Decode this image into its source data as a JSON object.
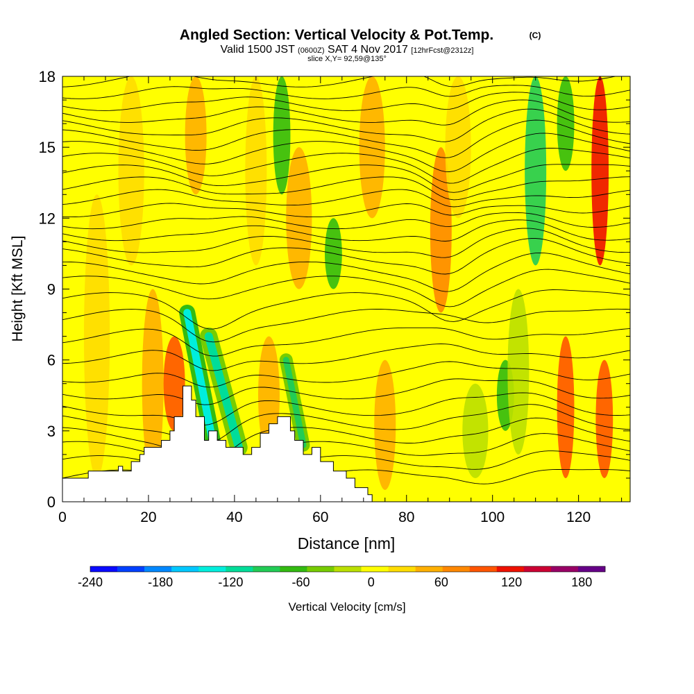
{
  "chart_data": {
    "type": "heatmap",
    "title": "Angled Section: Vertical Velocity & Pot.Temp.",
    "title_suffix": "(C)",
    "subtitle_parts": [
      "Valid 1500 JST",
      "(0600Z)",
      "SAT 4 Nov 2017",
      "[12hrFcst@2312z]"
    ],
    "slice_label": "slice X,Y= 92,59@135°",
    "xlabel": "Distance [nm]",
    "ylabel": "Height [Kft MSL]",
    "xlim": [
      0,
      132
    ],
    "ylim": [
      0,
      18
    ],
    "x_ticks": [
      "0",
      "20",
      "40",
      "60",
      "80",
      "100",
      "120"
    ],
    "y_ticks": [
      "0",
      "3",
      "6",
      "9",
      "12",
      "15",
      "18"
    ],
    "colorbar": {
      "label": "Vertical Velocity [cm/s]",
      "ticks": [
        "-240",
        "-180",
        "-120",
        "-60",
        "0",
        "60",
        "120",
        "180"
      ],
      "range": [
        -240,
        200
      ],
      "colors": [
        "#0a0aff",
        "#0040ff",
        "#0088ff",
        "#00c8ff",
        "#00eedd",
        "#00dd99",
        "#22cc55",
        "#33bb11",
        "#77cc00",
        "#bbe000",
        "#ffff00",
        "#ffdd00",
        "#ffb000",
        "#ff8800",
        "#ff5500",
        "#ee1100",
        "#cc0033",
        "#990066",
        "#660088"
      ]
    },
    "background_velocity": 12,
    "plumes": [
      {
        "x": 8,
        "w": 3,
        "y0": 1,
        "y1": 13,
        "v": 22
      },
      {
        "x": 16,
        "w": 3,
        "y0": 10,
        "y1": 18,
        "v": 22
      },
      {
        "x": 21,
        "w": 2.5,
        "y0": 1,
        "y1": 9,
        "v": 55
      },
      {
        "x": 26,
        "w": 2.5,
        "y0": 3,
        "y1": 7,
        "v": 95
      },
      {
        "x": 31,
        "w": 2.5,
        "y0": 13,
        "y1": 18,
        "v": 40
      },
      {
        "x": 45,
        "w": 2.5,
        "y0": 10,
        "y1": 18,
        "v": 30
      },
      {
        "x": 48,
        "w": 2.5,
        "y0": 2,
        "y1": 7,
        "v": 50
      },
      {
        "x": 51,
        "w": 2,
        "y0": 13,
        "y1": 18,
        "v": -70
      },
      {
        "x": 55,
        "w": 3,
        "y0": 9,
        "y1": 15,
        "v": 40
      },
      {
        "x": 63,
        "w": 2,
        "y0": 9,
        "y1": 12,
        "v": -55
      },
      {
        "x": 72,
        "w": 3,
        "y0": 12,
        "y1": 18,
        "v": 38
      },
      {
        "x": 75,
        "w": 2.5,
        "y0": 0.5,
        "y1": 6,
        "v": 45
      },
      {
        "x": 88,
        "w": 2.5,
        "y0": 8,
        "y1": 15,
        "v": 65
      },
      {
        "x": 92,
        "w": 3,
        "y0": 12,
        "y1": 18,
        "v": 30
      },
      {
        "x": 96,
        "w": 3,
        "y0": 1,
        "y1": 5,
        "v": -10
      },
      {
        "x": 103,
        "w": 2,
        "y0": 3,
        "y1": 6,
        "v": -55
      },
      {
        "x": 106,
        "w": 2.5,
        "y0": 2,
        "y1": 9,
        "v": -30
      },
      {
        "x": 110,
        "w": 2.5,
        "y0": 10,
        "y1": 18,
        "v": -80
      },
      {
        "x": 117,
        "w": 2,
        "y0": 14,
        "y1": 18,
        "v": -65
      },
      {
        "x": 117,
        "w": 2,
        "y0": 1,
        "y1": 7,
        "v": 90
      },
      {
        "x": 125,
        "w": 2,
        "y0": 10,
        "y1": 18,
        "v": 110
      },
      {
        "x": 126,
        "w": 2,
        "y0": 1,
        "y1": 6,
        "v": 85
      }
    ],
    "slanted_bands": [
      {
        "x_top": 29,
        "y_top": 8,
        "x_bot": 35,
        "y_bot": 2.5,
        "w": 1.1,
        "v": -130
      },
      {
        "x_top": 34,
        "y_top": 7,
        "x_bot": 41,
        "y_bot": 2.3,
        "w": 1.2,
        "v": -110
      },
      {
        "x_top": 52,
        "y_top": 6,
        "x_bot": 56,
        "y_bot": 2.4,
        "w": 0.9,
        "v": -100
      }
    ],
    "terrain": [
      [
        0,
        1
      ],
      [
        6,
        1
      ],
      [
        6,
        1.3
      ],
      [
        13,
        1.3
      ],
      [
        13,
        1.5
      ],
      [
        14,
        1.5
      ],
      [
        14,
        1.3
      ],
      [
        16,
        1.3
      ],
      [
        16,
        1.7
      ],
      [
        18,
        1.7
      ],
      [
        18,
        2
      ],
      [
        19,
        2
      ],
      [
        19,
        2.3
      ],
      [
        23,
        2.3
      ],
      [
        23,
        2.6
      ],
      [
        25,
        2.6
      ],
      [
        25,
        3
      ],
      [
        26,
        3
      ],
      [
        26,
        3.6
      ],
      [
        28,
        3.6
      ],
      [
        28,
        4.9
      ],
      [
        30,
        4.9
      ],
      [
        30,
        4.3
      ],
      [
        31,
        4.3
      ],
      [
        31,
        3.6
      ],
      [
        33,
        3.6
      ],
      [
        33,
        2.6
      ],
      [
        34,
        2.6
      ],
      [
        34,
        3
      ],
      [
        36,
        3
      ],
      [
        36,
        2.6
      ],
      [
        38,
        2.6
      ],
      [
        38,
        2.3
      ],
      [
        42,
        2.3
      ],
      [
        42,
        2
      ],
      [
        44,
        2
      ],
      [
        44,
        2.3
      ],
      [
        46,
        2.3
      ],
      [
        46,
        2.9
      ],
      [
        48,
        2.9
      ],
      [
        48,
        3.3
      ],
      [
        50,
        3.3
      ],
      [
        50,
        3.6
      ],
      [
        53,
        3.6
      ],
      [
        53,
        3
      ],
      [
        54,
        3
      ],
      [
        54,
        2.6
      ],
      [
        56,
        2.6
      ],
      [
        56,
        2
      ],
      [
        58,
        2
      ],
      [
        58,
        2.3
      ],
      [
        60,
        2.3
      ],
      [
        60,
        1.7
      ],
      [
        63,
        1.7
      ],
      [
        63,
        1.3
      ],
      [
        66,
        1.3
      ],
      [
        66,
        1
      ],
      [
        68,
        1
      ],
      [
        68,
        0.6
      ],
      [
        71,
        0.6
      ],
      [
        71,
        0.3
      ],
      [
        72,
        0.3
      ],
      [
        72,
        0
      ]
    ],
    "theta_levels": [
      {
        "label": "",
        "y": 1.0
      },
      {
        "label": "",
        "y": 1.6
      },
      {
        "label": "",
        "y": 2.2
      },
      {
        "label": "",
        "y": 2.8
      },
      {
        "label": "",
        "y": 3.4
      },
      {
        "label": "",
        "y": 4.0
      },
      {
        "label": "",
        "y": 4.7
      },
      {
        "label": "",
        "y": 5.4
      },
      {
        "label": "",
        "y": 6.2
      },
      {
        "label": "",
        "y": 7.0
      },
      {
        "label": "",
        "y": 7.8
      },
      {
        "label": "",
        "y": 8.5
      },
      {
        "label": "",
        "y": 9.2
      },
      {
        "label": "",
        "y": 9.8
      },
      {
        "label": "",
        "y": 10.4
      },
      {
        "label": "",
        "y": 10.9
      },
      {
        "label": "",
        "y": 11.4
      },
      {
        "label": "",
        "y": 11.9
      },
      {
        "label": "",
        "y": 12.4
      },
      {
        "label": "",
        "y": 12.9
      },
      {
        "label": "",
        "y": 13.4
      },
      {
        "label": "",
        "y": 13.9
      },
      {
        "label": "",
        "y": 14.4
      },
      {
        "label": "",
        "y": 14.9
      },
      {
        "label": "",
        "y": 15.4
      },
      {
        "label": "",
        "y": 15.9
      },
      {
        "label": "",
        "y": 16.4
      },
      {
        "label": "",
        "y": 16.9
      },
      {
        "label": "",
        "y": 17.4
      },
      {
        "label": "",
        "y": 17.9
      }
    ]
  }
}
